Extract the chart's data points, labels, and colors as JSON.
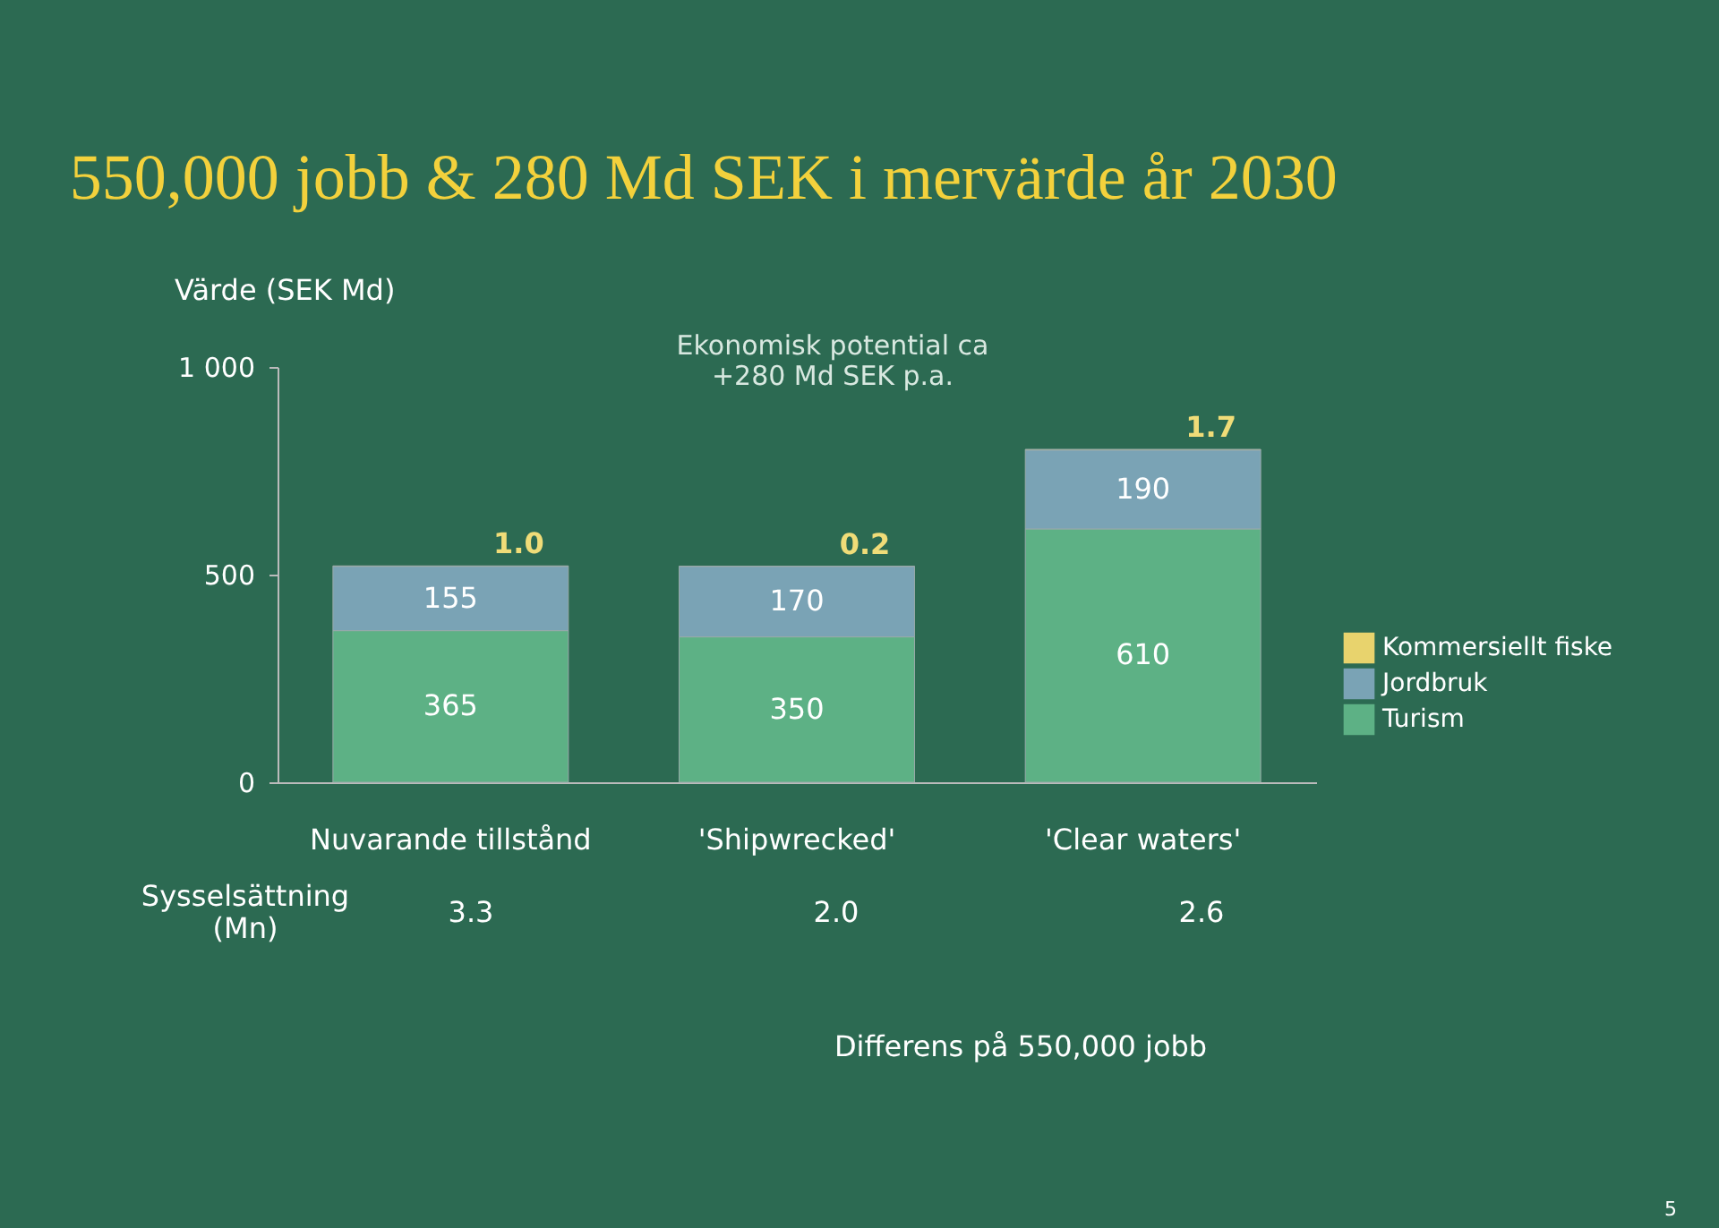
{
  "chart_data": {
    "type": "bar",
    "title": "550,000 jobb & 280 Md SEK i mervärde år 2030",
    "ylabel": "Värde (SEK Md)",
    "categories": [
      "Nuvarande tillstånd",
      "'Shipwrecked'",
      "'Clear waters'"
    ],
    "stacked": true,
    "series": [
      {
        "name": "Turism",
        "color": "#5db185",
        "values": [
          365,
          350,
          610
        ]
      },
      {
        "name": "Jordbruk",
        "color": "#7aa3b5",
        "values": [
          155,
          170,
          190
        ]
      },
      {
        "name": "Kommersiellt fiske",
        "color": "#e8d36d",
        "values": [
          1.0,
          0.2,
          1.7
        ],
        "value_labels": [
          "1.0",
          "0.2",
          "1.7"
        ]
      }
    ],
    "data_labels": true,
    "ylim": [
      0,
      1000
    ],
    "yticks": [
      0,
      500,
      {
        "value": 1000,
        "label": "1 000"
      }
    ],
    "grid": false,
    "legend": "right",
    "annotations": [
      "Ekonomisk potential ca\n+280 Md SEK p.a.",
      "Sysselsättning\n(Mn)",
      "3.3",
      "2.0",
      "2.6",
      "Differens på 550,000 jobb",
      "5"
    ]
  }
}
